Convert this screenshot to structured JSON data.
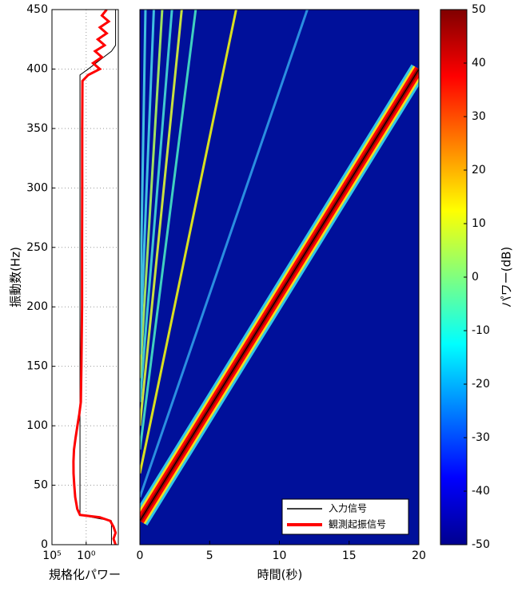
{
  "chart_data": [
    {
      "type": "line",
      "xlabel": "規格化パワー",
      "ylabel": "振動数(Hz)",
      "xscale": "log",
      "xlim": [
        100000,
        2e-05
      ],
      "xticks": [
        {
          "value": 100000,
          "label": "10⁵"
        },
        {
          "value": 1,
          "label": "10⁰"
        }
      ],
      "ylim": [
        0,
        450
      ],
      "yticks": [
        0,
        50,
        100,
        150,
        200,
        250,
        300,
        350,
        400,
        450
      ],
      "grid": true,
      "series": [
        {
          "color": "#000000",
          "y": [
            0,
            20,
            25,
            395,
            400,
            415,
            420,
            450
          ],
          "values": [
            0.0002,
            0.0002,
            8,
            8,
            0.5,
            0.0002,
            5e-05,
            5e-05
          ]
        },
        {
          "color": "#ff0000",
          "y": [
            0,
            5,
            10,
            15,
            20,
            23,
            25,
            30,
            40,
            50,
            60,
            70,
            80,
            90,
            100,
            110,
            120,
            150,
            200,
            250,
            300,
            350,
            390,
            395,
            400,
            405,
            410,
            415,
            420,
            425,
            430,
            435,
            440,
            445,
            450
          ],
          "values": [
            5e-05,
            0.0001,
            5e-05,
            0.0001,
            0.0003,
            0.01,
            8,
            20,
            40,
            55,
            70,
            72,
            60,
            35,
            19,
            10,
            6,
            5,
            4,
            4,
            3.8,
            3.8,
            3.5,
            0.5,
            0.01,
            0.1,
            0.005,
            0.05,
            0.002,
            0.02,
            0.001,
            0.01,
            0.0005,
            0.005,
            0.001
          ]
        }
      ]
    },
    {
      "type": "spectrogram",
      "xlabel": "時間(秒)",
      "xlim": [
        0,
        20
      ],
      "xticks": [
        0,
        5,
        10,
        15,
        20
      ],
      "ylim": [
        0,
        450
      ],
      "background": "#00109a",
      "legend": "lower right",
      "series": [
        {
          "name": "入力信号",
          "color": "#000000",
          "x": [
            0,
            20
          ],
          "values": [
            20,
            400
          ]
        },
        {
          "name": "観測起振信号",
          "color": "#ff0000",
          "x": [
            0,
            20
          ],
          "values": [
            20,
            400
          ]
        }
      ],
      "harmonics": [
        {
          "color": "#2a8ee0",
          "x": [
            0,
            12.0
          ],
          "values": [
            40,
            450
          ]
        },
        {
          "color": "#d8e020",
          "x": [
            0,
            6.9
          ],
          "values": [
            60,
            450
          ]
        },
        {
          "color": "#40d0c0",
          "x": [
            0,
            4.0
          ],
          "values": [
            80,
            450
          ]
        },
        {
          "color": "#c8e040",
          "x": [
            0,
            3.0
          ],
          "values": [
            100,
            450
          ]
        },
        {
          "color": "#40c8d0",
          "x": [
            0,
            2.3
          ],
          "values": [
            120,
            450
          ]
        },
        {
          "color": "#a0e060",
          "x": [
            0,
            1.6
          ],
          "values": [
            140,
            450
          ]
        },
        {
          "color": "#40c0e0",
          "x": [
            0,
            1.0
          ],
          "values": [
            160,
            450
          ]
        },
        {
          "color": "#40c0e0",
          "x": [
            0,
            0.4
          ],
          "values": [
            180,
            450
          ]
        }
      ]
    },
    {
      "type": "colorbar",
      "label": "パワー(dB)",
      "ylim": [
        -50,
        50
      ],
      "yticks": [
        -50,
        -40,
        -30,
        -20,
        -10,
        0,
        10,
        20,
        30,
        40,
        50
      ]
    }
  ]
}
